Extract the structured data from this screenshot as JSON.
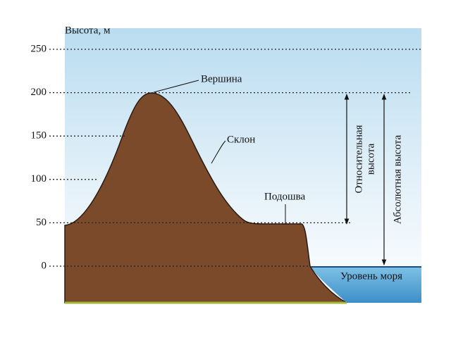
{
  "axis": {
    "title": "Высота, м",
    "ticks": [
      250,
      200,
      150,
      100,
      50,
      0
    ]
  },
  "labels": {
    "peak": "Вершина",
    "slope": "Склон",
    "foot": "Подошва",
    "sea_level": "Уровень моря",
    "relative_height": [
      "Относительная",
      "высота"
    ],
    "absolute_height": "Абсолютная высота"
  }
}
